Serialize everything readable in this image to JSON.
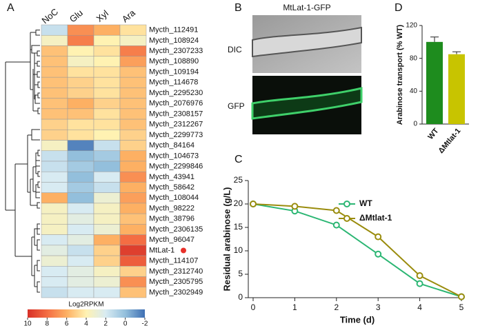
{
  "panel_labels": [
    "A",
    "B",
    "C",
    "D"
  ],
  "image_panel": {
    "title": "MtLat-1-GFP",
    "labels": [
      "DIC",
      "GFP"
    ]
  },
  "chart_data": [
    {
      "type": "heatmap",
      "columns": [
        "NoC",
        "Glu",
        "Xyl",
        "Ara"
      ],
      "rows": [
        "Mycth_112491",
        "Mycth_108924",
        "Mycth_2307233",
        "Mycth_108890",
        "Mycth_109194",
        "Mycth_114678",
        "Mycth_2295230",
        "Mycth_2076976",
        "Mycth_2308157",
        "Mycth_2312267",
        "Mycth_2299773",
        "Mycth_84164",
        "Mycth_104673",
        "Mycth_2299846",
        "Mycth_43941",
        "Mycth_58642",
        "Mycth_108044",
        "Mycth_98222",
        "Mycth_38796",
        "Mycth_2306135",
        "Mycth_96047",
        "MtLat-1",
        "Mycth_114107",
        "Mycth_2312740",
        "Mycth_2305795",
        "Mycth_2302949"
      ],
      "values": [
        [
          1.5,
          7,
          6,
          4.5
        ],
        [
          3.5,
          7.5,
          4,
          3.5
        ],
        [
          5.5,
          4,
          4.5,
          7.5
        ],
        [
          5.5,
          3.5,
          4,
          6.5
        ],
        [
          5.5,
          4.5,
          4.5,
          5.5
        ],
        [
          5.5,
          5,
          4.5,
          5.5
        ],
        [
          5.5,
          5,
          4.5,
          5.5
        ],
        [
          5.5,
          6,
          5,
          5.5
        ],
        [
          5.5,
          5.5,
          4.5,
          5.5
        ],
        [
          5,
          4.5,
          4.5,
          5.5
        ],
        [
          5,
          4.5,
          4,
          5
        ],
        [
          3.5,
          -1.5,
          1.5,
          5
        ],
        [
          1.5,
          0,
          0.5,
          6
        ],
        [
          1.5,
          0.5,
          0,
          6
        ],
        [
          2,
          0,
          2,
          7
        ],
        [
          2,
          0.5,
          1.5,
          6
        ],
        [
          6,
          0,
          3,
          6.5
        ],
        [
          3.5,
          2,
          3.5,
          6
        ],
        [
          3.5,
          2.5,
          3.5,
          5.5
        ],
        [
          3.5,
          2,
          3,
          6
        ],
        [
          2,
          2.5,
          6,
          8
        ],
        [
          2.5,
          1.5,
          5,
          9.5
        ],
        [
          3,
          2,
          5,
          8.5
        ],
        [
          2,
          2.5,
          3.5,
          5
        ],
        [
          2,
          2.5,
          3,
          7
        ],
        [
          1.5,
          2,
          2,
          5.5
        ]
      ],
      "colorbar": {
        "label": "Log2RPKM",
        "ticks": [
          10,
          8,
          6,
          4,
          2,
          0,
          -2
        ],
        "colors": [
          "#d73027",
          "#f46d43",
          "#fdb063",
          "#fff2b2",
          "#d8ebf2",
          "#93bfdc",
          "#3f6fb3"
        ]
      }
    },
    {
      "type": "line",
      "x": [
        0,
        1,
        2,
        3,
        4,
        5
      ],
      "series": [
        {
          "name": "WT",
          "color": "#2bb673",
          "values": [
            20,
            18.5,
            15.5,
            9.3,
            3,
            0.2
          ]
        },
        {
          "name": "ΔMtlat-1",
          "color": "#9a8c0d",
          "values": [
            20,
            19.5,
            18.6,
            13,
            4.7,
            0.2
          ]
        }
      ],
      "xlim": [
        0,
        5
      ],
      "xticks": [
        0,
        1,
        2,
        3,
        4,
        5
      ],
      "ylim": [
        0,
        25
      ],
      "yticks": [
        0,
        5,
        10,
        15,
        20,
        25
      ],
      "x_label": "Time (d)",
      "y_label": "Residual arabinose (g/L)",
      "legend": "upper right"
    },
    {
      "type": "bar",
      "categories": [
        "WT",
        "ΔMtlat-1"
      ],
      "values": [
        100,
        85
      ],
      "errors": [
        6,
        3
      ],
      "colors": [
        "#1e8c1e",
        "#c8c400"
      ],
      "ylim": [
        0,
        120
      ],
      "yticks": [
        0,
        40,
        80,
        120
      ],
      "y_label": "Arabinose transport (% WT)"
    }
  ]
}
